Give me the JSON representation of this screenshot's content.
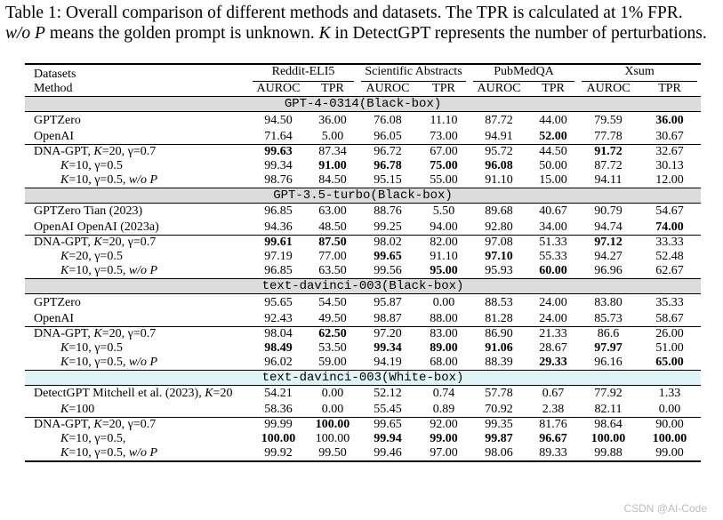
{
  "caption": {
    "line1": "Table 1: Overall comparison of different methods and datasets. The TPR is calculated at 1% FPR.",
    "line2_italic": "w/o P",
    "line2_mid": " means the golden prompt is unknown. ",
    "line2_k": "K",
    "line2_rest": " in DetectGPT represents the number of perturbations."
  },
  "header": {
    "datasets_label": "Datasets",
    "method_label": "Method",
    "datasets": [
      "Reddit-ELI5",
      "Scientific Abstracts",
      "PubMedQA",
      "Xsum"
    ],
    "metric_auroc": "AUROC",
    "metric_tpr": "TPR"
  },
  "sections": [
    {
      "title": "GPT-4-0314(Black-box)",
      "groups": [
        [
          {
            "method": "GPTZero",
            "indent": false,
            "values": [
              "94.50",
              "36.00",
              "76.08",
              "11.10",
              "87.72",
              "44.00",
              "79.59",
              "36.00"
            ],
            "bold": [
              7
            ]
          },
          {
            "method": "OpenAI",
            "indent": false,
            "values": [
              "71.64",
              "5.00",
              "96.05",
              "73.00",
              "94.91",
              "52.00",
              "77.78",
              "30.67"
            ],
            "bold": [
              5
            ]
          }
        ],
        [
          {
            "method": "DNA-GPT, K=20, γ=0.7",
            "indent": false,
            "values": [
              "99.63",
              "87.34",
              "96.72",
              "67.00",
              "95.72",
              "44.50",
              "91.72",
              "32.67"
            ],
            "bold": [
              0,
              6
            ]
          },
          {
            "method": "K=10, γ=0.5",
            "indent": true,
            "values": [
              "99.34",
              "91.00",
              "96.78",
              "75.00",
              "96.08",
              "50.00",
              "87.72",
              "30.13"
            ],
            "bold": [
              1,
              2,
              3,
              4
            ]
          },
          {
            "method": "K=10, γ=0.5, w/o P",
            "indent": true,
            "values": [
              "98.76",
              "84.50",
              "95.15",
              "55.00",
              "91.10",
              "15.00",
              "94.11",
              "12.00"
            ],
            "bold": []
          }
        ]
      ]
    },
    {
      "title": "GPT-3.5-turbo(Black-box)",
      "groups": [
        [
          {
            "method": "GPTZero Tian (2023)",
            "indent": false,
            "values": [
              "96.85",
              "63.00",
              "88.76",
              "5.50",
              "89.68",
              "40.67",
              "90.79",
              "54.67"
            ],
            "bold": []
          },
          {
            "method": "OpenAI OpenAI (2023a)",
            "indent": false,
            "values": [
              "94.36",
              "48.50",
              "99.25",
              "94.00",
              "92.80",
              "34.00",
              "94.74",
              "74.00"
            ],
            "bold": [
              7
            ]
          }
        ],
        [
          {
            "method": "DNA-GPT, K=20, γ=0.7",
            "indent": false,
            "values": [
              "99.61",
              "87.50",
              "98.02",
              "82.00",
              "97.08",
              "51.33",
              "97.12",
              "33.33"
            ],
            "bold": [
              0,
              1,
              6
            ]
          },
          {
            "method": "K=20, γ=0.5",
            "indent": true,
            "values": [
              "97.19",
              "77.00",
              "99.65",
              "91.10",
              "97.10",
              "55.33",
              "94.27",
              "52.48"
            ],
            "bold": [
              2,
              4
            ]
          },
          {
            "method": "K=10, γ=0.5, w/o P",
            "indent": true,
            "values": [
              "96.85",
              "63.50",
              "99.56",
              "95.00",
              "95.93",
              "60.00",
              "96.96",
              "62.67"
            ],
            "bold": [
              3,
              5
            ]
          }
        ]
      ]
    },
    {
      "title": "text-davinci-003(Black-box)",
      "groups": [
        [
          {
            "method": "GPTZero",
            "indent": false,
            "values": [
              "95.65",
              "54.50",
              "95.87",
              "0.00",
              "88.53",
              "24.00",
              "83.80",
              "35.33"
            ],
            "bold": []
          },
          {
            "method": "OpenAI",
            "indent": false,
            "values": [
              "92.43",
              "49.50",
              "98.87",
              "88.00",
              "81.28",
              "24.00",
              "85.73",
              "58.67"
            ],
            "bold": []
          }
        ],
        [
          {
            "method": "DNA-GPT, K=20, γ=0.7",
            "indent": false,
            "values": [
              "98.04",
              "62.50",
              "97.20",
              "83.00",
              "86.90",
              "21.33",
              "86.6",
              "26.00"
            ],
            "bold": [
              1
            ]
          },
          {
            "method": "K=10, γ=0.5",
            "indent": true,
            "values": [
              "98.49",
              "53.50",
              "99.34",
              "89.00",
              "91.06",
              "28.67",
              "97.97",
              "51.00"
            ],
            "bold": [
              0,
              2,
              3,
              4,
              6
            ]
          },
          {
            "method": "K=10, γ=0.5, w/o P",
            "indent": true,
            "values": [
              "96.02",
              "59.00",
              "94.19",
              "68.00",
              "88.39",
              "29.33",
              "96.16",
              "65.00"
            ],
            "bold": [
              5,
              7
            ]
          }
        ]
      ]
    },
    {
      "title": "text-davinci-003(White-box)",
      "whitebox": true,
      "groups": [
        [
          {
            "method": "DetectGPT Mitchell et al. (2023), K=20",
            "indent": false,
            "values": [
              "54.21",
              "0.00",
              "52.12",
              "0.74",
              "57.78",
              "0.67",
              "77.92",
              "1.33"
            ],
            "bold": []
          },
          {
            "method": "K=100",
            "indent": true,
            "values": [
              "58.36",
              "0.00",
              "55.45",
              "0.89",
              "70.92",
              "2.38",
              "82.11",
              "0.00"
            ],
            "bold": []
          }
        ],
        [
          {
            "method": "DNA-GPT, K=20, γ=0.7",
            "indent": false,
            "values": [
              "99.99",
              "100.00",
              "99.65",
              "92.00",
              "99.35",
              "81.76",
              "98.64",
              "90.00"
            ],
            "bold": [
              1
            ]
          },
          {
            "method": "K=10, γ=0.5,",
            "indent": true,
            "values": [
              "100.00",
              "100.00",
              "99.94",
              "99.00",
              "99.87",
              "96.67",
              "100.00",
              "100.00"
            ],
            "bold": [
              0,
              2,
              3,
              4,
              5,
              6,
              7
            ]
          },
          {
            "method": "K=10, γ=0.5, w/o P",
            "indent": true,
            "values": [
              "99.92",
              "99.50",
              "99.46",
              "97.00",
              "98.06",
              "89.33",
              "99.88",
              "99.00"
            ],
            "bold": []
          }
        ]
      ]
    }
  ],
  "watermark": "CSDN @AI-Code"
}
